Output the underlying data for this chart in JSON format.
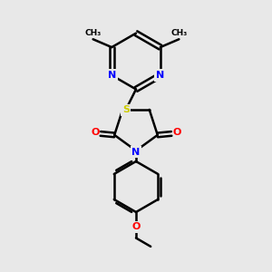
{
  "bg_color": "#e8e8e8",
  "bond_color": "#000000",
  "N_color": "#0000ff",
  "O_color": "#ff0000",
  "S_color": "#cccc00",
  "C_color": "#000000",
  "line_width": 1.8,
  "figsize": [
    3.0,
    3.0
  ],
  "dpi": 100,
  "xlim": [
    0,
    10
  ],
  "ylim": [
    0,
    10
  ]
}
